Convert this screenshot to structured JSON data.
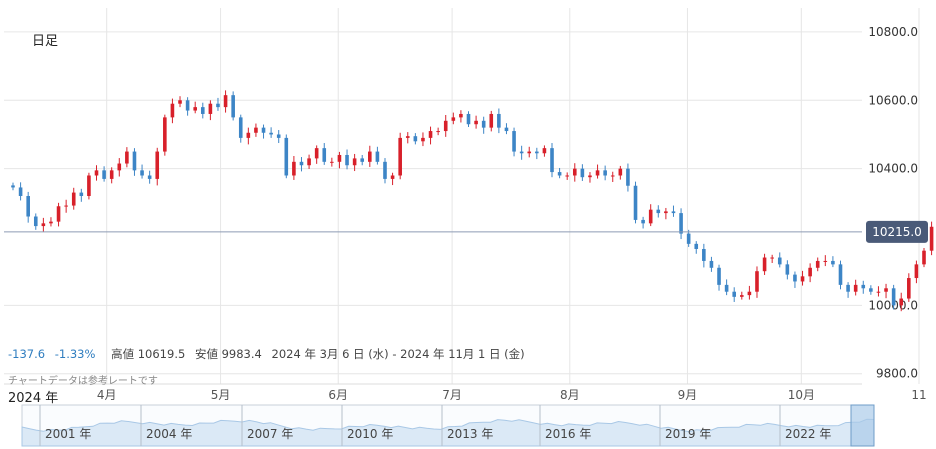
{
  "header": {
    "period_label": "日足"
  },
  "stats": {
    "change": "-137.6",
    "change_pct": "-1.33%",
    "high_label": "高値",
    "high_value": "10619.5",
    "low_label": "安値",
    "low_value": "9983.4",
    "date_range": "2024 年 3月 6 日 (水) - 2024 年 11月 1 日 (金)"
  },
  "disclaimer": "チャートデータは参考レートです",
  "colors": {
    "up": "#d8202a",
    "down": "#3d85c6",
    "grid": "#e6e6e6",
    "last_price_bg": "#4a5a78"
  },
  "chart_data": {
    "type": "candlestick",
    "y_ticks": [
      "10800.0",
      "10600.0",
      "10400.0",
      "10000.0",
      "9800.0"
    ],
    "y_tick_values": [
      10800,
      10600,
      10400,
      10000,
      9800
    ],
    "ylim": [
      9770,
      10870
    ],
    "last_price": "10215.0",
    "last_price_value": 10215,
    "year_label": "2024 年",
    "x_ticks": [
      "4月",
      "5月",
      "6月",
      "7月",
      "8月",
      "9月",
      "10月",
      "11"
    ],
    "x_tick_days": [
      26,
      56,
      87,
      117,
      148,
      179,
      209,
      240
    ],
    "day_range": [
      0,
      240
    ],
    "closes": [
      {
        "d": 0,
        "c": 10345
      },
      {
        "d": 2,
        "c": 10320
      },
      {
        "d": 4,
        "c": 10260
      },
      {
        "d": 6,
        "c": 10232
      },
      {
        "d": 8,
        "c": 10240
      },
      {
        "d": 10,
        "c": 10245
      },
      {
        "d": 12,
        "c": 10290
      },
      {
        "d": 14,
        "c": 10292
      },
      {
        "d": 16,
        "c": 10330
      },
      {
        "d": 18,
        "c": 10320
      },
      {
        "d": 20,
        "c": 10380
      },
      {
        "d": 22,
        "c": 10395
      },
      {
        "d": 24,
        "c": 10370
      },
      {
        "d": 26,
        "c": 10395
      },
      {
        "d": 28,
        "c": 10415
      },
      {
        "d": 30,
        "c": 10450
      },
      {
        "d": 32,
        "c": 10395
      },
      {
        "d": 34,
        "c": 10380
      },
      {
        "d": 36,
        "c": 10370
      },
      {
        "d": 38,
        "c": 10450
      },
      {
        "d": 40,
        "c": 10550
      },
      {
        "d": 42,
        "c": 10590
      },
      {
        "d": 44,
        "c": 10600
      },
      {
        "d": 46,
        "c": 10570
      },
      {
        "d": 48,
        "c": 10580
      },
      {
        "d": 50,
        "c": 10560
      },
      {
        "d": 52,
        "c": 10590
      },
      {
        "d": 54,
        "c": 10580
      },
      {
        "d": 56,
        "c": 10615
      },
      {
        "d": 58,
        "c": 10550
      },
      {
        "d": 60,
        "c": 10490
      },
      {
        "d": 62,
        "c": 10505
      },
      {
        "d": 64,
        "c": 10520
      },
      {
        "d": 66,
        "c": 10505
      },
      {
        "d": 68,
        "c": 10500
      },
      {
        "d": 70,
        "c": 10490
      },
      {
        "d": 72,
        "c": 10380
      },
      {
        "d": 74,
        "c": 10420
      },
      {
        "d": 76,
        "c": 10410
      },
      {
        "d": 78,
        "c": 10430
      },
      {
        "d": 80,
        "c": 10460
      },
      {
        "d": 82,
        "c": 10420
      },
      {
        "d": 84,
        "c": 10420
      },
      {
        "d": 86,
        "c": 10440
      },
      {
        "d": 88,
        "c": 10410
      },
      {
        "d": 90,
        "c": 10430
      },
      {
        "d": 92,
        "c": 10420
      },
      {
        "d": 94,
        "c": 10450
      },
      {
        "d": 96,
        "c": 10420
      },
      {
        "d": 98,
        "c": 10370
      },
      {
        "d": 100,
        "c": 10380
      },
      {
        "d": 102,
        "c": 10490
      },
      {
        "d": 104,
        "c": 10495
      },
      {
        "d": 106,
        "c": 10480
      },
      {
        "d": 108,
        "c": 10490
      },
      {
        "d": 110,
        "c": 10510
      },
      {
        "d": 112,
        "c": 10510
      },
      {
        "d": 114,
        "c": 10540
      },
      {
        "d": 116,
        "c": 10550
      },
      {
        "d": 118,
        "c": 10560
      },
      {
        "d": 120,
        "c": 10530
      },
      {
        "d": 122,
        "c": 10540
      },
      {
        "d": 124,
        "c": 10520
      },
      {
        "d": 126,
        "c": 10560
      },
      {
        "d": 128,
        "c": 10520
      },
      {
        "d": 130,
        "c": 10510
      },
      {
        "d": 132,
        "c": 10450
      },
      {
        "d": 134,
        "c": 10445
      },
      {
        "d": 136,
        "c": 10450
      },
      {
        "d": 138,
        "c": 10445
      },
      {
        "d": 140,
        "c": 10460
      },
      {
        "d": 142,
        "c": 10390
      },
      {
        "d": 144,
        "c": 10380
      },
      {
        "d": 146,
        "c": 10380
      },
      {
        "d": 148,
        "c": 10400
      },
      {
        "d": 150,
        "c": 10375
      },
      {
        "d": 152,
        "c": 10380
      },
      {
        "d": 154,
        "c": 10395
      },
      {
        "d": 156,
        "c": 10380
      },
      {
        "d": 158,
        "c": 10380
      },
      {
        "d": 160,
        "c": 10400
      },
      {
        "d": 162,
        "c": 10350
      },
      {
        "d": 164,
        "c": 10250
      },
      {
        "d": 166,
        "c": 10240
      },
      {
        "d": 168,
        "c": 10280
      },
      {
        "d": 170,
        "c": 10270
      },
      {
        "d": 172,
        "c": 10275
      },
      {
        "d": 174,
        "c": 10270
      },
      {
        "d": 176,
        "c": 10210
      },
      {
        "d": 178,
        "c": 10180
      },
      {
        "d": 180,
        "c": 10165
      },
      {
        "d": 182,
        "c": 10130
      },
      {
        "d": 184,
        "c": 10110
      },
      {
        "d": 186,
        "c": 10060
      },
      {
        "d": 188,
        "c": 10040
      },
      {
        "d": 190,
        "c": 10025
      },
      {
        "d": 192,
        "c": 10030
      },
      {
        "d": 194,
        "c": 10040
      },
      {
        "d": 196,
        "c": 10100
      },
      {
        "d": 198,
        "c": 10140
      },
      {
        "d": 200,
        "c": 10140
      },
      {
        "d": 202,
        "c": 10120
      },
      {
        "d": 204,
        "c": 10090
      },
      {
        "d": 206,
        "c": 10070
      },
      {
        "d": 208,
        "c": 10085
      },
      {
        "d": 210,
        "c": 10110
      },
      {
        "d": 212,
        "c": 10130
      },
      {
        "d": 214,
        "c": 10130
      },
      {
        "d": 216,
        "c": 10120
      },
      {
        "d": 218,
        "c": 10060
      },
      {
        "d": 220,
        "c": 10040
      },
      {
        "d": 222,
        "c": 10060
      },
      {
        "d": 224,
        "c": 10050
      },
      {
        "d": 226,
        "c": 10040
      },
      {
        "d": 228,
        "c": 10040
      },
      {
        "d": 230,
        "c": 10050
      },
      {
        "d": 232,
        "c": 10000
      },
      {
        "d": 234,
        "c": 10020
      },
      {
        "d": 236,
        "c": 10080
      },
      {
        "d": 238,
        "c": 10120
      },
      {
        "d": 240,
        "c": 10160
      },
      {
        "d": 242,
        "c": 10230
      },
      {
        "d": 244,
        "c": 10218
      }
    ],
    "navigator": {
      "year_labels": [
        "2001 年",
        "2004 年",
        "2007 年",
        "2010 年",
        "2013 年",
        "2016 年",
        "2019 年",
        "2022 年"
      ]
    }
  }
}
